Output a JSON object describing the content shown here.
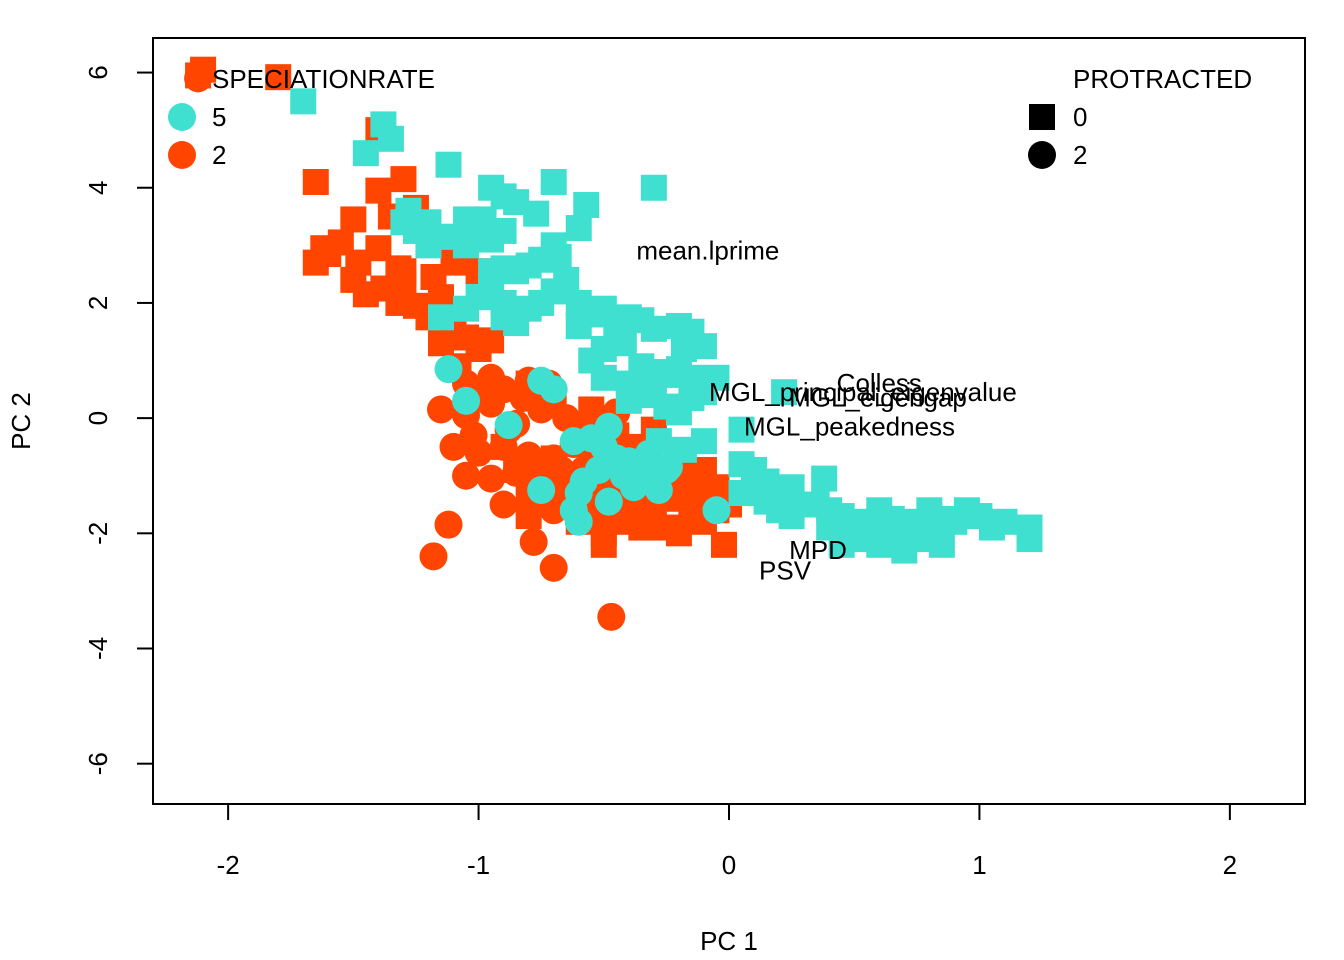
{
  "chart_data": {
    "type": "scatter",
    "title": "",
    "xlabel": "PC 1",
    "ylabel": "PC 2",
    "xlim": [
      -2.3,
      2.3
    ],
    "ylim": [
      -6.7,
      6.6
    ],
    "xticks": [
      -2,
      -1,
      0,
      1,
      2
    ],
    "yticks": [
      -6,
      -4,
      -2,
      0,
      2,
      4,
      6
    ],
    "grid": false,
    "colors": {
      "5": "#40E0D0",
      "2": "#FF4500"
    },
    "legends": {
      "color": {
        "title": "SPECIATIONRATE",
        "placement": "top-left",
        "entries": [
          {
            "key": "5",
            "label": "5",
            "color": "#40E0D0"
          },
          {
            "key": "2",
            "label": "2",
            "color": "#FF4500"
          }
        ]
      },
      "shape": {
        "title": "PROTRACTED",
        "placement": "top-right",
        "entries": [
          {
            "key": "0",
            "label": "0",
            "shape": "square"
          },
          {
            "key": "2",
            "label": "2",
            "shape": "circle"
          }
        ]
      }
    },
    "series": [
      {
        "color_key": "2",
        "shape_key": "0",
        "points": [
          [
            -2.1,
            6.05
          ],
          [
            -2.12,
            5.95
          ],
          [
            -1.8,
            5.92
          ],
          [
            -1.65,
            4.1
          ],
          [
            -1.4,
            3.95
          ],
          [
            -1.3,
            4.15
          ],
          [
            -1.25,
            3.65
          ],
          [
            -1.5,
            3.45
          ],
          [
            -1.35,
            3.5
          ],
          [
            -1.55,
            3.05
          ],
          [
            -1.6,
            2.85
          ],
          [
            -1.65,
            2.7
          ],
          [
            -1.4,
            2.95
          ],
          [
            -1.2,
            3.05
          ],
          [
            -1.1,
            2.7
          ],
          [
            -1.3,
            2.55
          ],
          [
            -1.5,
            2.4
          ],
          [
            -1.45,
            2.15
          ],
          [
            -1.3,
            2.3
          ],
          [
            -1.25,
            1.95
          ],
          [
            -1.15,
            2.1
          ],
          [
            -1.0,
            2.55
          ],
          [
            -1.2,
            1.75
          ],
          [
            -1.1,
            1.5
          ],
          [
            -1.0,
            1.2
          ],
          [
            -1.05,
            1.4
          ],
          [
            -0.95,
            1.35
          ],
          [
            -1.08,
            0.9
          ],
          [
            -1.32,
            2.6
          ],
          [
            -1.62,
            2.95
          ],
          [
            -1.48,
            2.7
          ],
          [
            -1.38,
            2.25
          ],
          [
            -1.18,
            2.45
          ],
          [
            -1.05,
            2.85
          ],
          [
            -1.15,
            1.3
          ],
          [
            -1.32,
            2.0
          ],
          [
            -1.4,
            5.0
          ],
          [
            -0.8,
            0.6
          ],
          [
            -0.7,
            0.3
          ],
          [
            -0.55,
            0.15
          ],
          [
            -0.45,
            -0.3
          ],
          [
            -0.35,
            -0.5
          ],
          [
            -0.3,
            -0.2
          ],
          [
            -0.2,
            -0.7
          ],
          [
            -0.15,
            -1.0
          ],
          [
            -0.1,
            -1.3
          ],
          [
            -0.05,
            -1.6
          ],
          [
            -0.25,
            -1.2
          ],
          [
            -0.35,
            -1.1
          ],
          [
            -0.4,
            -1.5
          ],
          [
            -0.45,
            -1.8
          ],
          [
            -0.5,
            -2.0
          ],
          [
            -0.55,
            -1.6
          ],
          [
            -0.6,
            -1.4
          ],
          [
            -0.65,
            -1.1
          ],
          [
            -0.75,
            -1.0
          ],
          [
            -0.8,
            -1.3
          ],
          [
            -0.85,
            -0.9
          ],
          [
            -0.25,
            -1.9
          ],
          [
            -0.2,
            -2.0
          ],
          [
            -0.1,
            -1.8
          ],
          [
            -0.05,
            -1.2
          ],
          [
            0.0,
            -1.5
          ],
          [
            0.0,
            -1.3
          ],
          [
            -0.02,
            -2.2
          ],
          [
            -0.5,
            -2.2
          ],
          [
            -0.6,
            -1.8
          ],
          [
            -0.3,
            -1.6
          ],
          [
            -0.15,
            -1.5
          ],
          [
            -0.35,
            -1.9
          ],
          [
            -0.45,
            -1.2
          ],
          [
            -0.4,
            -0.8
          ],
          [
            -0.2,
            -1.3
          ],
          [
            -0.1,
            -0.9
          ],
          [
            -0.7,
            -0.7
          ],
          [
            -0.9,
            -0.5
          ],
          [
            -0.55,
            -0.7
          ],
          [
            -0.6,
            -0.2
          ],
          [
            -0.65,
            -1.5
          ],
          [
            -0.8,
            -1.7
          ],
          [
            -0.3,
            -1.3
          ],
          [
            -0.25,
            -1.4
          ],
          [
            -0.15,
            -1.7
          ],
          [
            -0.08,
            -1.4
          ],
          [
            -0.45,
            -1.0
          ]
        ]
      },
      {
        "color_key": "2",
        "shape_key": "2",
        "points": [
          [
            -2.12,
            5.9
          ],
          [
            -1.05,
            0.6
          ],
          [
            -0.95,
            0.7
          ],
          [
            -0.9,
            0.5
          ],
          [
            -0.8,
            0.65
          ],
          [
            -0.72,
            0.6
          ],
          [
            -1.15,
            0.15
          ],
          [
            -1.05,
            0.05
          ],
          [
            -0.95,
            0.25
          ],
          [
            -0.85,
            -0.1
          ],
          [
            -0.75,
            0.15
          ],
          [
            -0.65,
            0.0
          ],
          [
            -0.55,
            -0.2
          ],
          [
            -0.45,
            0.1
          ],
          [
            -1.1,
            -0.5
          ],
          [
            -1.0,
            -0.6
          ],
          [
            -0.9,
            -0.5
          ],
          [
            -0.8,
            -0.65
          ],
          [
            -0.7,
            -0.7
          ],
          [
            -1.05,
            -1.0
          ],
          [
            -0.95,
            -1.05
          ],
          [
            -0.85,
            -0.95
          ],
          [
            -0.75,
            -1.1
          ],
          [
            -0.65,
            -1.3
          ],
          [
            -0.55,
            -1.2
          ],
          [
            -0.9,
            -1.5
          ],
          [
            -0.8,
            -1.5
          ],
          [
            -0.7,
            -1.6
          ],
          [
            -1.12,
            -1.85
          ],
          [
            -1.18,
            -2.4
          ],
          [
            -0.78,
            -2.15
          ],
          [
            -0.7,
            -2.6
          ],
          [
            -0.47,
            -3.45
          ],
          [
            -1.02,
            -0.3
          ],
          [
            -0.88,
            -0.2
          ],
          [
            -0.62,
            -0.45
          ],
          [
            -0.58,
            -0.9
          ],
          [
            -0.98,
            0.45
          ],
          [
            -0.82,
            0.35
          ],
          [
            -0.67,
            -0.9
          ]
        ]
      },
      {
        "color_key": "5",
        "shape_key": "0",
        "points": [
          [
            -1.7,
            5.5
          ],
          [
            -1.38,
            5.1
          ],
          [
            -1.35,
            4.85
          ],
          [
            -1.45,
            4.6
          ],
          [
            -1.12,
            4.4
          ],
          [
            -0.95,
            4.0
          ],
          [
            -0.9,
            3.85
          ],
          [
            -0.85,
            3.75
          ],
          [
            -0.7,
            4.1
          ],
          [
            -0.57,
            3.7
          ],
          [
            -0.3,
            4.0
          ],
          [
            -1.2,
            3.4
          ],
          [
            -1.05,
            3.45
          ],
          [
            -1.0,
            3.3
          ],
          [
            -0.95,
            3.1
          ],
          [
            -0.9,
            3.25
          ],
          [
            -1.1,
            3.15
          ],
          [
            -1.3,
            3.4
          ],
          [
            -1.25,
            3.25
          ],
          [
            -0.7,
            3.0
          ],
          [
            -0.68,
            2.8
          ],
          [
            -0.75,
            2.75
          ],
          [
            -0.8,
            2.65
          ],
          [
            -0.85,
            2.55
          ],
          [
            -0.9,
            2.6
          ],
          [
            -0.65,
            2.4
          ],
          [
            -0.7,
            2.2
          ],
          [
            -0.75,
            2.0
          ],
          [
            -0.8,
            1.9
          ],
          [
            -0.9,
            2.0
          ],
          [
            -0.95,
            2.3
          ],
          [
            -1.0,
            2.1
          ],
          [
            -1.05,
            1.9
          ],
          [
            -1.15,
            1.75
          ],
          [
            -0.9,
            1.75
          ],
          [
            -0.85,
            1.65
          ],
          [
            -0.6,
            2.0
          ],
          [
            -0.55,
            1.8
          ],
          [
            -0.5,
            1.9
          ],
          [
            -0.45,
            1.6
          ],
          [
            -0.4,
            1.75
          ],
          [
            -0.35,
            1.7
          ],
          [
            -0.3,
            1.55
          ],
          [
            -0.2,
            1.6
          ],
          [
            -0.15,
            1.5
          ],
          [
            -0.1,
            1.25
          ],
          [
            -0.5,
            1.2
          ],
          [
            -0.55,
            1.0
          ],
          [
            -0.5,
            0.7
          ],
          [
            -0.4,
            0.6
          ],
          [
            -0.35,
            0.9
          ],
          [
            -0.3,
            0.8
          ],
          [
            -0.25,
            0.75
          ],
          [
            -0.2,
            0.85
          ],
          [
            -0.15,
            0.7
          ],
          [
            -0.1,
            0.6
          ],
          [
            -0.05,
            0.7
          ],
          [
            -0.4,
            0.3
          ],
          [
            -0.3,
            0.4
          ],
          [
            -0.25,
            0.2
          ],
          [
            -0.2,
            0.1
          ],
          [
            -0.15,
            0.35
          ],
          [
            -0.1,
            0.45
          ],
          [
            0.05,
            -0.8
          ],
          [
            0.1,
            -0.9
          ],
          [
            0.15,
            -1.1
          ],
          [
            0.2,
            -1.3
          ],
          [
            0.25,
            -1.2
          ],
          [
            0.3,
            -1.5
          ],
          [
            0.35,
            -1.5
          ],
          [
            0.4,
            -1.6
          ],
          [
            0.45,
            -1.7
          ],
          [
            0.5,
            -1.8
          ],
          [
            0.55,
            -1.85
          ],
          [
            0.6,
            -1.6
          ],
          [
            0.65,
            -1.75
          ],
          [
            0.7,
            -1.9
          ],
          [
            0.75,
            -1.8
          ],
          [
            0.8,
            -1.6
          ],
          [
            0.85,
            -1.75
          ],
          [
            0.9,
            -1.8
          ],
          [
            0.95,
            -1.6
          ],
          [
            1.0,
            -1.7
          ],
          [
            1.05,
            -1.9
          ],
          [
            1.1,
            -1.8
          ],
          [
            1.2,
            -1.9
          ],
          [
            1.2,
            -2.1
          ],
          [
            0.4,
            -1.9
          ],
          [
            0.5,
            -2.1
          ],
          [
            0.6,
            -2.2
          ],
          [
            0.7,
            -2.3
          ],
          [
            0.8,
            -2.0
          ],
          [
            0.85,
            -2.2
          ],
          [
            0.55,
            -2.0
          ],
          [
            0.45,
            -2.2
          ],
          [
            0.65,
            -2.05
          ],
          [
            0.75,
            -2.1
          ],
          [
            0.2,
            -1.6
          ],
          [
            0.25,
            -1.7
          ],
          [
            0.15,
            -1.45
          ],
          [
            0.1,
            -1.2
          ],
          [
            0.05,
            -1.3
          ],
          [
            0.38,
            -1.05
          ],
          [
            -0.28,
            -0.4
          ],
          [
            -0.18,
            -0.55
          ],
          [
            -0.1,
            -0.4
          ],
          [
            0.22,
            0.45
          ],
          [
            0.05,
            -0.2
          ],
          [
            -0.95,
            2.55
          ],
          [
            -1.05,
            3.0
          ],
          [
            -1.2,
            3.0
          ],
          [
            -1.28,
            3.6
          ],
          [
            -0.98,
            3.45
          ],
          [
            -0.77,
            3.55
          ],
          [
            -0.6,
            3.3
          ],
          [
            -0.42,
            1.3
          ],
          [
            -0.6,
            1.6
          ],
          [
            -0.18,
            1.2
          ]
        ]
      },
      {
        "color_key": "5",
        "shape_key": "2",
        "points": [
          [
            -1.12,
            0.85
          ],
          [
            -1.05,
            0.3
          ],
          [
            -0.88,
            -0.12
          ],
          [
            -0.75,
            0.65
          ],
          [
            -0.7,
            0.5
          ],
          [
            -0.62,
            -0.4
          ],
          [
            -0.55,
            -0.35
          ],
          [
            -0.48,
            -0.15
          ],
          [
            -0.5,
            -0.5
          ],
          [
            -0.45,
            -0.7
          ],
          [
            -0.4,
            -0.75
          ],
          [
            -0.35,
            -0.9
          ],
          [
            -0.3,
            -1.0
          ],
          [
            -0.25,
            -0.9
          ],
          [
            -0.42,
            -1.0
          ],
          [
            -0.38,
            -1.2
          ],
          [
            -0.28,
            -1.25
          ],
          [
            -0.52,
            -0.9
          ],
          [
            -0.58,
            -1.1
          ],
          [
            -0.6,
            -1.3
          ],
          [
            -0.75,
            -1.25
          ],
          [
            -0.62,
            -1.6
          ],
          [
            -0.6,
            -1.8
          ],
          [
            -0.05,
            -1.6
          ],
          [
            -0.24,
            -0.85
          ],
          [
            -0.32,
            -0.62
          ],
          [
            -0.48,
            -1.45
          ]
        ]
      }
    ],
    "annotations": [
      {
        "text": "mean.lprime",
        "x": -0.37,
        "y": 2.75
      },
      {
        "text": "MGL_principal_eigenvalue",
        "x": -0.08,
        "y": 0.3
      },
      {
        "text": "Colless",
        "x": 0.43,
        "y": 0.45
      },
      {
        "text": "MGL_eigengap",
        "x": 0.24,
        "y": 0.2
      },
      {
        "text": "MGL_peakedness",
        "x": 0.06,
        "y": -0.3
      },
      {
        "text": "MPD",
        "x": 0.24,
        "y": -2.45
      },
      {
        "text": "PSV",
        "x": 0.12,
        "y": -2.8
      }
    ]
  }
}
